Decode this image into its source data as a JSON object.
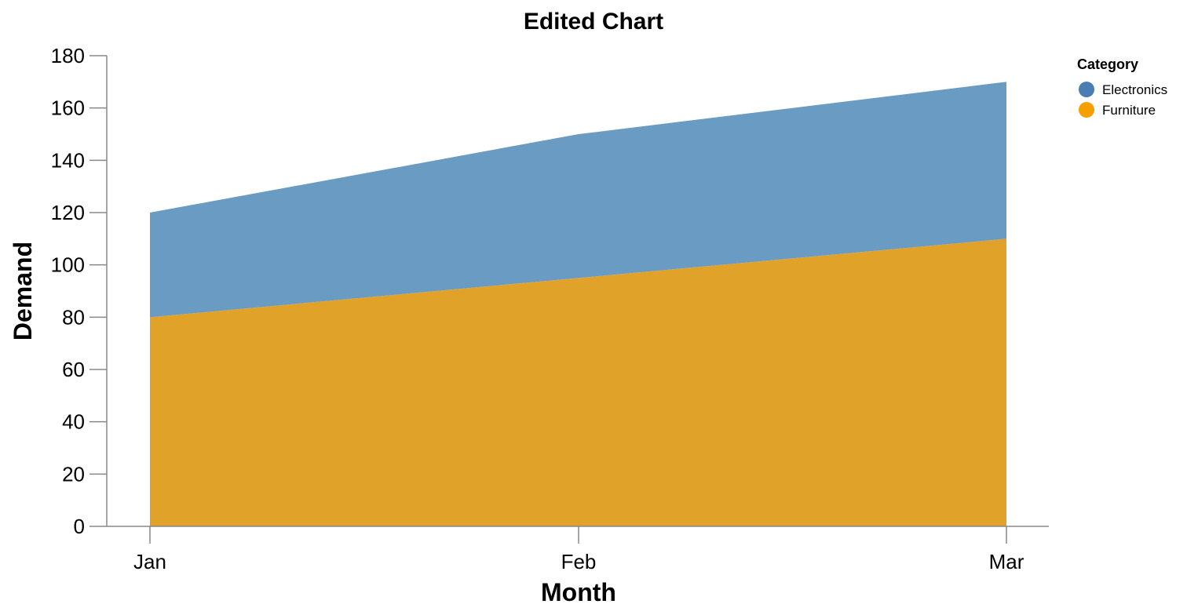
{
  "chart_data": {
    "type": "area",
    "stacked": true,
    "title": "Edited Chart",
    "xlabel": "Month",
    "ylabel": "Demand",
    "categories": [
      "Jan",
      "Feb",
      "Mar"
    ],
    "ylim": [
      0,
      180
    ],
    "yticks": [
      "0",
      "20",
      "40",
      "60",
      "80",
      "100",
      "120",
      "140",
      "160",
      "180"
    ],
    "grid": false,
    "legend": {
      "title": "Category",
      "placement": "top-right"
    },
    "series": [
      {
        "name": "Furniture",
        "values": [
          80,
          95,
          110
        ],
        "color": "#E0A228",
        "legend_color": "#F5A000"
      },
      {
        "name": "Electronics",
        "values": [
          40,
          55,
          60
        ],
        "color": "#6A9BC3",
        "legend_color": "#4A7DB3"
      }
    ],
    "legend_order": [
      "Electronics",
      "Furniture"
    ]
  }
}
